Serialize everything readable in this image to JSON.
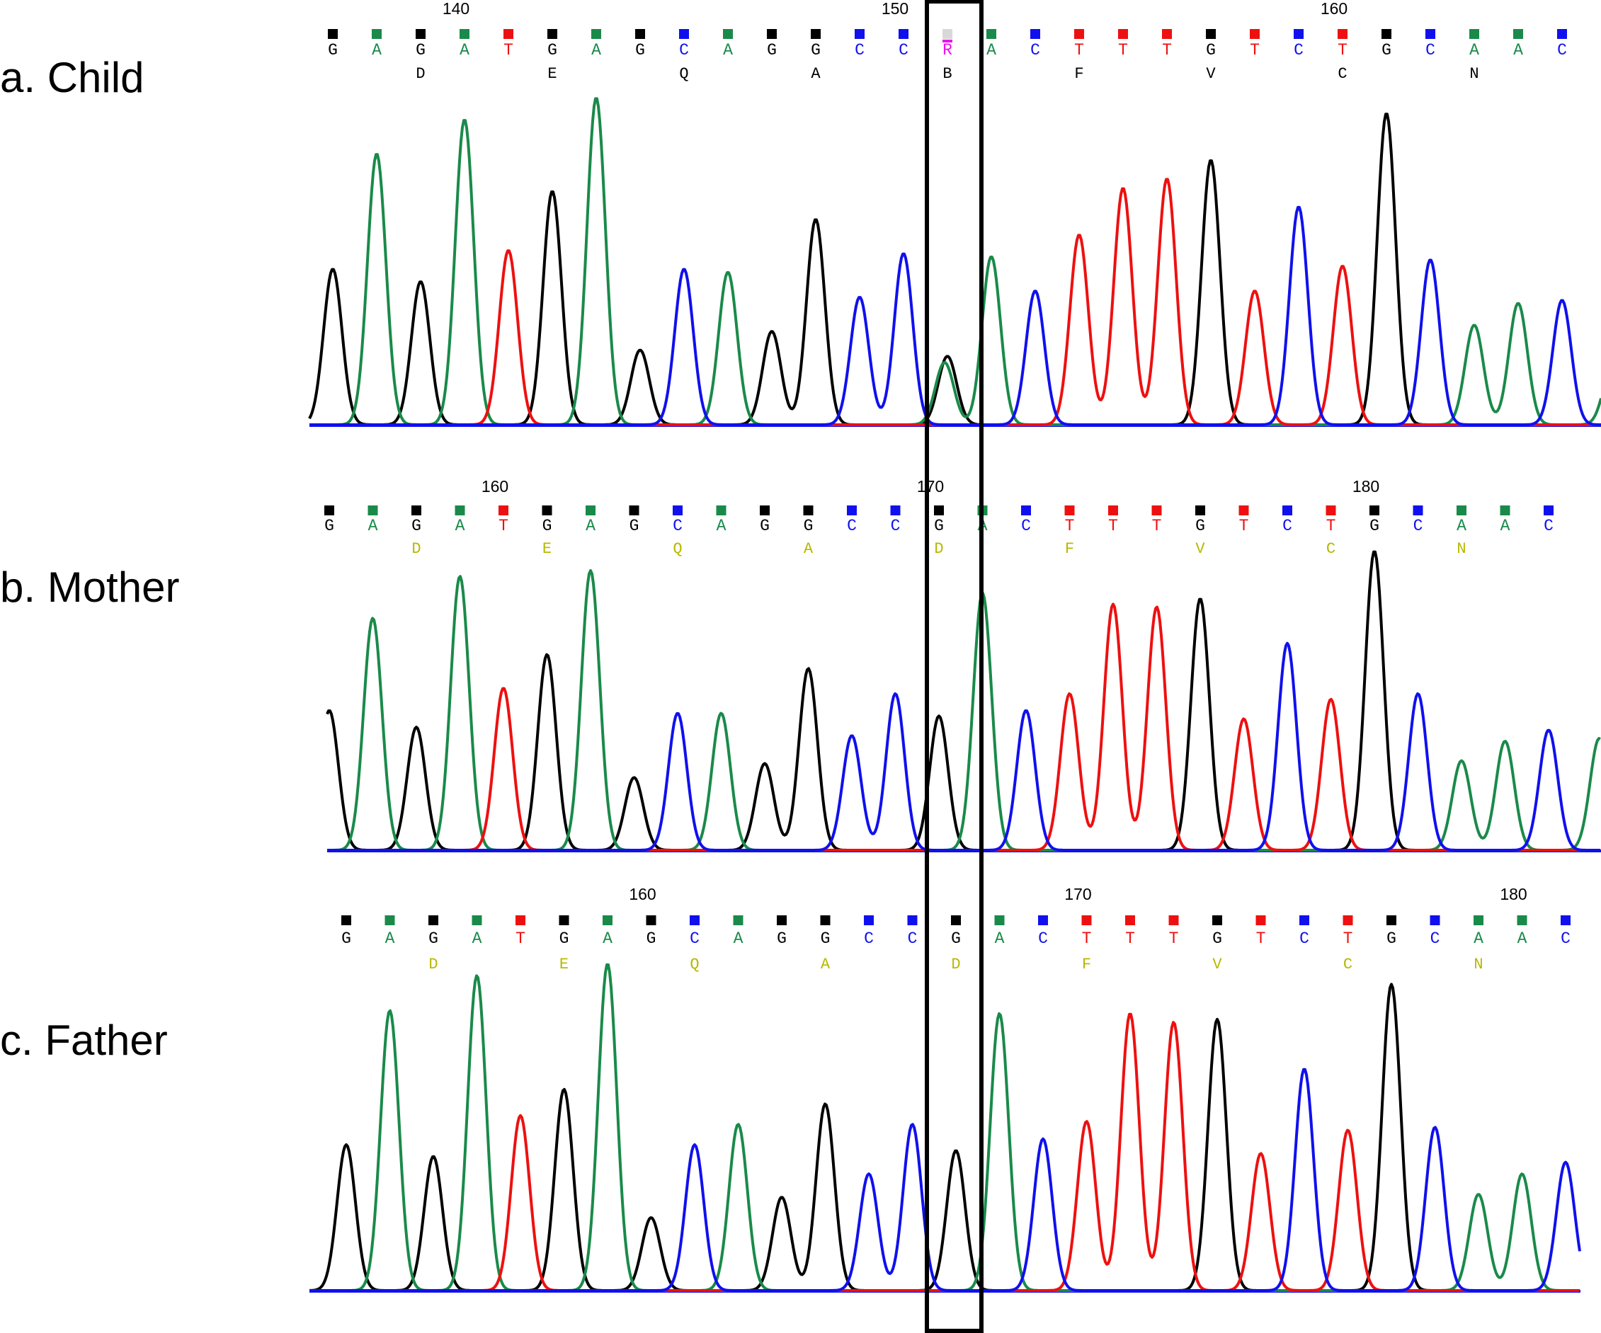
{
  "figure_labels": {
    "a": "a. Child",
    "b": "b. Mother",
    "c": "c. Father"
  },
  "colors": {
    "A": "#1a8a4a",
    "C": "#1010ee",
    "G": "#000000",
    "T": "#ee1010",
    "ambiguous": "#ee10ee",
    "amino_child": "#000000",
    "amino_parents": "#b8b800",
    "highlight_box": "#000000"
  },
  "chart_data": [
    {
      "type": "chromatogram",
      "panel": "a. Child",
      "bases": [
        "G",
        "A",
        "G",
        "A",
        "T",
        "G",
        "A",
        "G",
        "C",
        "A",
        "G",
        "G",
        "C",
        "C",
        "R",
        "A",
        "C",
        "T",
        "T",
        "T",
        "G",
        "T",
        "C",
        "T",
        "G",
        "C",
        "A",
        "A",
        "C"
      ],
      "amino_acids": [
        {
          "base_index": 2,
          "label": "D"
        },
        {
          "base_index": 5,
          "label": "E"
        },
        {
          "base_index": 8,
          "label": "Q"
        },
        {
          "base_index": 11,
          "label": "A"
        },
        {
          "base_index": 14,
          "label": "B"
        },
        {
          "base_index": 17,
          "label": "F"
        },
        {
          "base_index": 20,
          "label": "V"
        },
        {
          "base_index": 23,
          "label": "C"
        },
        {
          "base_index": 26,
          "label": "N"
        }
      ],
      "position_labels": [
        {
          "base_index": 3,
          "label": "140"
        },
        {
          "base_index": 13,
          "label": "150"
        },
        {
          "base_index": 23,
          "label": "160"
        }
      ],
      "peak_heights": [
        0.5,
        0.87,
        0.46,
        0.98,
        0.56,
        0.75,
        1.05,
        0.24,
        0.5,
        0.49,
        0.3,
        0.66,
        0.41,
        0.55,
        0.22,
        0.54,
        0.43,
        0.61,
        0.76,
        0.79,
        0.85,
        0.43,
        0.7,
        0.51,
        1.0,
        0.53,
        0.32,
        0.39,
        0.4
      ],
      "secondary_peaks": [
        {
          "base_index": 14,
          "base": "A",
          "height": 0.2
        }
      ],
      "overflow_right_peak": {
        "base": "A",
        "height": 0.2
      }
    },
    {
      "type": "chromatogram",
      "panel": "b. Mother",
      "bases": [
        "G",
        "A",
        "G",
        "A",
        "T",
        "G",
        "A",
        "G",
        "C",
        "A",
        "G",
        "G",
        "C",
        "C",
        "G",
        "A",
        "C",
        "T",
        "T",
        "T",
        "G",
        "T",
        "C",
        "T",
        "G",
        "C",
        "A",
        "A",
        "C"
      ],
      "amino_acids": [
        {
          "base_index": 2,
          "label": "D"
        },
        {
          "base_index": 5,
          "label": "E"
        },
        {
          "base_index": 8,
          "label": "Q"
        },
        {
          "base_index": 11,
          "label": "A"
        },
        {
          "base_index": 14,
          "label": "D"
        },
        {
          "base_index": 17,
          "label": "F"
        },
        {
          "base_index": 20,
          "label": "V"
        },
        {
          "base_index": 23,
          "label": "C"
        },
        {
          "base_index": 26,
          "label": "N"
        }
      ],
      "position_labels": [
        {
          "base_index": 4,
          "label": "160"
        },
        {
          "base_index": 14,
          "label": "170"
        },
        {
          "base_index": 24,
          "label": "180"
        }
      ],
      "peak_heights": [
        0.5,
        0.83,
        0.44,
        0.98,
        0.58,
        0.7,
        1.0,
        0.26,
        0.49,
        0.49,
        0.31,
        0.65,
        0.41,
        0.56,
        0.48,
        0.92,
        0.5,
        0.56,
        0.88,
        0.87,
        0.9,
        0.47,
        0.74,
        0.54,
        1.07,
        0.56,
        0.32,
        0.39,
        0.43
      ],
      "secondary_peaks": [],
      "overflow_right_peak": {
        "base": "A",
        "height": 0.4
      }
    },
    {
      "type": "chromatogram",
      "panel": "c. Father",
      "bases": [
        "G",
        "A",
        "G",
        "A",
        "T",
        "G",
        "A",
        "G",
        "C",
        "A",
        "G",
        "G",
        "C",
        "C",
        "G",
        "A",
        "C",
        "T",
        "T",
        "T",
        "G",
        "T",
        "C",
        "T",
        "G",
        "C",
        "A",
        "A",
        "C"
      ],
      "amino_acids": [
        {
          "base_index": 2,
          "label": "D"
        },
        {
          "base_index": 5,
          "label": "E"
        },
        {
          "base_index": 8,
          "label": "Q"
        },
        {
          "base_index": 11,
          "label": "A"
        },
        {
          "base_index": 14,
          "label": "D"
        },
        {
          "base_index": 17,
          "label": "F"
        },
        {
          "base_index": 20,
          "label": "V"
        },
        {
          "base_index": 23,
          "label": "C"
        },
        {
          "base_index": 26,
          "label": "N"
        }
      ],
      "position_labels": [
        {
          "base_index": 7,
          "label": "160"
        },
        {
          "base_index": 17,
          "label": "170"
        },
        {
          "base_index": 27,
          "label": "180"
        }
      ],
      "peak_heights": [
        0.5,
        0.96,
        0.46,
        1.08,
        0.6,
        0.69,
        1.12,
        0.25,
        0.5,
        0.57,
        0.32,
        0.64,
        0.4,
        0.57,
        0.48,
        0.95,
        0.52,
        0.58,
        0.95,
        0.92,
        0.93,
        0.47,
        0.76,
        0.55,
        1.05,
        0.56,
        0.33,
        0.4,
        0.44
      ],
      "secondary_peaks": [],
      "overflow_right_peak": null
    }
  ]
}
